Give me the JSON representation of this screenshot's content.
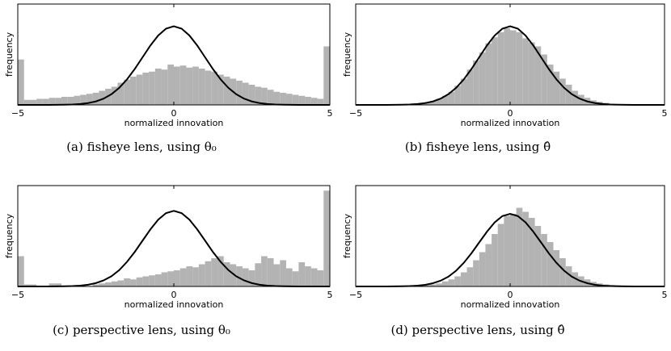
{
  "chart_data": [
    {
      "type": "histogram",
      "caption": "(a) fisheye lens, using θ₀",
      "xlabel": "normalized innovation",
      "ylabel": "frequency",
      "color": "#b3b3b3",
      "xlim": [
        -5,
        5
      ],
      "ylim": [
        0,
        100
      ],
      "xticks": [
        {
          "value": -5,
          "label": "−5"
        },
        0,
        5
      ],
      "bins": [
        -5,
        -4.8,
        -4.6,
        -4.4,
        -4.2,
        -4,
        -3.8,
        -3.6,
        -3.4,
        -3.2,
        -3,
        -2.8,
        -2.6,
        -2.4,
        -2.2,
        -2,
        -1.8,
        -1.6,
        -1.4,
        -1.2,
        -1,
        -0.8,
        -0.6,
        -0.4,
        -0.2,
        0,
        0.2,
        0.4,
        0.6,
        0.8,
        1,
        1.2,
        1.4,
        1.6,
        1.8,
        2,
        2.2,
        2.4,
        2.6,
        2.8,
        3,
        3.2,
        3.4,
        3.6,
        3.8,
        4,
        4.2,
        4.4,
        4.6,
        4.8,
        5
      ],
      "values": [
        45,
        5,
        5,
        6,
        6,
        7,
        7,
        8,
        8,
        9,
        10,
        11,
        12,
        14,
        16,
        18,
        22,
        25,
        28,
        30,
        32,
        33,
        36,
        35,
        40,
        38,
        39,
        37,
        38,
        36,
        34,
        33,
        30,
        28,
        26,
        24,
        22,
        20,
        18,
        17,
        15,
        13,
        12,
        11,
        10,
        9,
        8,
        7,
        6,
        58
      ],
      "curve": {
        "x": [
          -5,
          -4.75,
          -4.5,
          -4.25,
          -4,
          -3.75,
          -3.5,
          -3.25,
          -3,
          -2.75,
          -2.5,
          -2.25,
          -2,
          -1.75,
          -1.5,
          -1.25,
          -1,
          -0.75,
          -0.5,
          -0.25,
          0,
          0.25,
          0.5,
          0.75,
          1,
          1.25,
          1.5,
          1.75,
          2,
          2.25,
          2.5,
          2.75,
          3,
          3.25,
          3.5,
          3.75,
          4,
          4.25,
          4.5,
          4.75,
          5
        ],
        "values": [
          0,
          0,
          0,
          0,
          0,
          0.1,
          0.2,
          0.4,
          0.9,
          1.8,
          3.4,
          6.2,
          10.6,
          16.9,
          25.3,
          35.7,
          47.3,
          58.9,
          68.8,
          75.6,
          78,
          75.6,
          68.8,
          58.9,
          47.3,
          35.7,
          25.3,
          16.9,
          10.6,
          6.2,
          3.4,
          1.8,
          0.9,
          0.4,
          0.2,
          0.1,
          0,
          0,
          0,
          0,
          0
        ]
      }
    },
    {
      "type": "histogram",
      "caption": "(b) fisheye lens, using θ̂",
      "xlabel": "normalized innovation",
      "ylabel": "frequency",
      "color": "#b3b3b3",
      "xlim": [
        -5,
        5
      ],
      "ylim": [
        0,
        100
      ],
      "xticks": [
        {
          "value": -5,
          "label": "−5"
        },
        0,
        5
      ],
      "bins": [
        -5,
        -4.8,
        -4.6,
        -4.4,
        -4.2,
        -4,
        -3.8,
        -3.6,
        -3.4,
        -3.2,
        -3,
        -2.8,
        -2.6,
        -2.4,
        -2.2,
        -2,
        -1.8,
        -1.6,
        -1.4,
        -1.2,
        -1,
        -0.8,
        -0.6,
        -0.4,
        -0.2,
        0,
        0.2,
        0.4,
        0.6,
        0.8,
        1,
        1.2,
        1.4,
        1.6,
        1.8,
        2,
        2.2,
        2.4,
        2.6,
        2.8,
        3,
        3.2,
        3.4,
        3.6,
        3.8,
        4,
        4.2,
        4.4,
        4.6,
        4.8,
        5
      ],
      "values": [
        0,
        0,
        0,
        0,
        0,
        0,
        0,
        0,
        0.5,
        1,
        1.5,
        2.5,
        4,
        6,
        9,
        13,
        19,
        26,
        35,
        44,
        52,
        61,
        67,
        72,
        76,
        74,
        72,
        66,
        62,
        58,
        50,
        40,
        33,
        26,
        20,
        14,
        10,
        7,
        4.5,
        3,
        2,
        1,
        0.5,
        0.3,
        0,
        0,
        0,
        0,
        0,
        0
      ],
      "curve": {
        "x": [
          -5,
          -4.75,
          -4.5,
          -4.25,
          -4,
          -3.75,
          -3.5,
          -3.25,
          -3,
          -2.75,
          -2.5,
          -2.25,
          -2,
          -1.75,
          -1.5,
          -1.25,
          -1,
          -0.75,
          -0.5,
          -0.25,
          0,
          0.25,
          0.5,
          0.75,
          1,
          1.25,
          1.5,
          1.75,
          2,
          2.25,
          2.5,
          2.75,
          3,
          3.25,
          3.5,
          3.75,
          4,
          4.25,
          4.5,
          4.75,
          5
        ],
        "values": [
          0,
          0,
          0,
          0,
          0,
          0.1,
          0.2,
          0.4,
          0.9,
          1.8,
          3.4,
          6.2,
          10.6,
          16.9,
          25.3,
          35.7,
          47.3,
          58.9,
          68.8,
          75.6,
          78,
          75.6,
          68.8,
          58.9,
          47.3,
          35.7,
          25.3,
          16.9,
          10.6,
          6.2,
          3.4,
          1.8,
          0.9,
          0.4,
          0.2,
          0.1,
          0,
          0,
          0,
          0,
          0
        ]
      }
    },
    {
      "type": "histogram",
      "caption": "(c) perspective lens, using θ₀",
      "xlabel": "normalized innovation",
      "ylabel": "frequency",
      "color": "#b3b3b3",
      "xlim": [
        -5,
        5
      ],
      "ylim": [
        0,
        100
      ],
      "xticks": [
        {
          "value": -5,
          "label": "−5"
        },
        0,
        5
      ],
      "bins": [
        -5,
        -4.8,
        -4.6,
        -4.4,
        -4.2,
        -4,
        -3.8,
        -3.6,
        -3.4,
        -3.2,
        -3,
        -2.8,
        -2.6,
        -2.4,
        -2.2,
        -2,
        -1.8,
        -1.6,
        -1.4,
        -1.2,
        -1,
        -0.8,
        -0.6,
        -0.4,
        -0.2,
        0,
        0.2,
        0.4,
        0.6,
        0.8,
        1,
        1.2,
        1.4,
        1.6,
        1.8,
        2,
        2.2,
        2.4,
        2.6,
        2.8,
        3,
        3.2,
        3.4,
        3.6,
        3.8,
        4,
        4.2,
        4.4,
        4.6,
        4.8,
        5
      ],
      "values": [
        30,
        2,
        2,
        0,
        0,
        3,
        3,
        0,
        0,
        0,
        0,
        0,
        2,
        3,
        4,
        5,
        6,
        8,
        7,
        9,
        10,
        11,
        12,
        14,
        15,
        16,
        18,
        20,
        19,
        22,
        25,
        28,
        30,
        24,
        22,
        20,
        18,
        16,
        23,
        30,
        28,
        22,
        26,
        18,
        15,
        24,
        20,
        18,
        16,
        95
      ],
      "curve": {
        "x": [
          -5,
          -4.75,
          -4.5,
          -4.25,
          -4,
          -3.75,
          -3.5,
          -3.25,
          -3,
          -2.75,
          -2.5,
          -2.25,
          -2,
          -1.75,
          -1.5,
          -1.25,
          -1,
          -0.75,
          -0.5,
          -0.25,
          0,
          0.25,
          0.5,
          0.75,
          1,
          1.25,
          1.5,
          1.75,
          2,
          2.25,
          2.5,
          2.75,
          3,
          3.25,
          3.5,
          3.75,
          4,
          4.25,
          4.5,
          4.75,
          5
        ],
        "values": [
          0,
          0,
          0,
          0,
          0,
          0.1,
          0.2,
          0.4,
          0.8,
          1.7,
          3.3,
          6,
          10.1,
          16.2,
          24.4,
          34.3,
          45.5,
          56.6,
          66.2,
          72.7,
          75,
          72.7,
          66.2,
          56.6,
          45.5,
          34.3,
          24.4,
          16.2,
          10.1,
          6,
          3.3,
          1.7,
          0.8,
          0.4,
          0.2,
          0.1,
          0,
          0,
          0,
          0,
          0
        ]
      }
    },
    {
      "type": "histogram",
      "caption": "(d) perspective lens, using θ̂",
      "xlabel": "normalized innovation",
      "ylabel": "frequency",
      "color": "#b3b3b3",
      "xlim": [
        -5,
        5
      ],
      "ylim": [
        0,
        100
      ],
      "xticks": [
        {
          "value": -5,
          "label": "−5"
        },
        0,
        5
      ],
      "bins": [
        -5,
        -4.8,
        -4.6,
        -4.4,
        -4.2,
        -4,
        -3.8,
        -3.6,
        -3.4,
        -3.2,
        -3,
        -2.8,
        -2.6,
        -2.4,
        -2.2,
        -2,
        -1.8,
        -1.6,
        -1.4,
        -1.2,
        -1,
        -0.8,
        -0.6,
        -0.4,
        -0.2,
        0,
        0.2,
        0.4,
        0.6,
        0.8,
        1,
        1.2,
        1.4,
        1.6,
        1.8,
        2,
        2.2,
        2.4,
        2.6,
        2.8,
        3,
        3.2,
        3.4,
        3.6,
        3.8,
        4,
        4.2,
        4.4,
        4.6,
        4.8,
        5
      ],
      "values": [
        0,
        0,
        0,
        0,
        0,
        0,
        0,
        0,
        0,
        0.5,
        1,
        1.5,
        2,
        3,
        5,
        7,
        10,
        14,
        19,
        26,
        34,
        42,
        52,
        62,
        70,
        72,
        78,
        74,
        68,
        60,
        52,
        44,
        36,
        28,
        20,
        14,
        10,
        7,
        4.5,
        3,
        2,
        1.5,
        1,
        0.5,
        0,
        0,
        0,
        0,
        0,
        0
      ],
      "curve": {
        "x": [
          -5,
          -4.75,
          -4.5,
          -4.25,
          -4,
          -3.75,
          -3.5,
          -3.25,
          -3,
          -2.75,
          -2.5,
          -2.25,
          -2,
          -1.75,
          -1.5,
          -1.25,
          -1,
          -0.75,
          -0.5,
          -0.25,
          0,
          0.25,
          0.5,
          0.75,
          1,
          1.25,
          1.5,
          1.75,
          2,
          2.25,
          2.5,
          2.75,
          3,
          3.25,
          3.5,
          3.75,
          4,
          4.25,
          4.5,
          4.75,
          5
        ],
        "values": [
          0,
          0,
          0,
          0,
          0,
          0.1,
          0.2,
          0.4,
          0.8,
          1.6,
          3.2,
          5.7,
          9.7,
          15.6,
          23.4,
          33,
          43.7,
          54.3,
          63.5,
          69.8,
          72,
          69.8,
          63.5,
          54.3,
          43.7,
          33,
          23.4,
          15.6,
          9.7,
          5.7,
          3.2,
          1.6,
          0.8,
          0.4,
          0.2,
          0.1,
          0,
          0,
          0,
          0,
          0
        ]
      }
    }
  ]
}
